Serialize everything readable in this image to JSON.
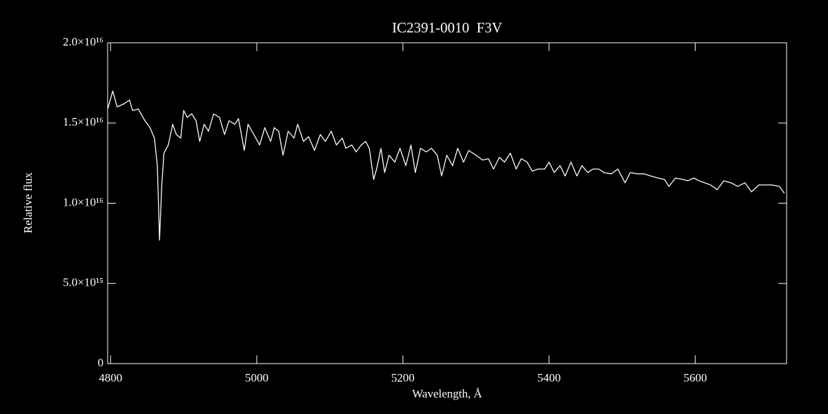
{
  "chart_data": {
    "type": "line",
    "title": "IC2391-0010  F3V",
    "xlabel": "Wavelength, Å",
    "ylabel": "Relative flux",
    "color": "#ffffff",
    "xlim": [
      4796,
      5725
    ],
    "xticks": [
      4800,
      5000,
      5200,
      5400,
      5600
    ],
    "ylim": [
      0,
      2e+16
    ],
    "yticks": [
      0,
      {
        "value": 5000000000000000.0,
        "label": "5.0×10¹⁵"
      },
      {
        "value": 1e+16,
        "label": "1.0×10¹⁶"
      },
      {
        "value": 1.5e+16,
        "label": "1.5×10¹⁶"
      },
      {
        "value": 2e+16,
        "label": "2.0×10¹⁶"
      }
    ],
    "x": [
      4796,
      4803,
      4809,
      4819,
      4826,
      4830,
      4838,
      4847,
      4854,
      4860,
      4864,
      4867,
      4870,
      4873,
      4879,
      4885,
      4890,
      4896,
      4900,
      4905,
      4911,
      4917,
      4922,
      4928,
      4934,
      4941,
      4949,
      4956,
      4962,
      4970,
      4975,
      4983,
      4988,
      4996,
      5004,
      5011,
      5019,
      5024,
      5030,
      5036,
      5043,
      5051,
      5056,
      5064,
      5071,
      5079,
      5087,
      5094,
      5102,
      5109,
      5117,
      5122,
      5130,
      5136,
      5143,
      5149,
      5154,
      5160,
      5164,
      5170,
      5175,
      5181,
      5189,
      5196,
      5204,
      5211,
      5217,
      5224,
      5232,
      5239,
      5247,
      5253,
      5260,
      5268,
      5275,
      5283,
      5290,
      5300,
      5309,
      5317,
      5324,
      5332,
      5339,
      5347,
      5355,
      5362,
      5370,
      5377,
      5385,
      5394,
      5400,
      5407,
      5415,
      5422,
      5430,
      5438,
      5445,
      5453,
      5460,
      5468,
      5475,
      5485,
      5494,
      5504,
      5511,
      5521,
      5530,
      5539,
      5549,
      5558,
      5564,
      5573,
      5583,
      5590,
      5598,
      5605,
      5613,
      5621,
      5630,
      5639,
      5649,
      5658,
      5668,
      5677,
      5687,
      5696,
      5705,
      5715,
      5722
    ],
    "values": [
      1.587e+16,
      1.699e+16,
      1.6e+16,
      1.621e+16,
      1.643e+16,
      1.578e+16,
      1.587e+16,
      1.514e+16,
      1.471e+16,
      1.406e+16,
      1.234e+16,
      7700000000000000.0,
      1.105e+16,
      1.312e+16,
      1.363e+16,
      1.492e+16,
      1.428e+16,
      1.406e+16,
      1.578e+16,
      1.535e+16,
      1.557e+16,
      1.514e+16,
      1.385e+16,
      1.492e+16,
      1.449e+16,
      1.557e+16,
      1.535e+16,
      1.428e+16,
      1.514e+16,
      1.492e+16,
      1.527e+16,
      1.329e+16,
      1.492e+16,
      1.428e+16,
      1.363e+16,
      1.471e+16,
      1.385e+16,
      1.471e+16,
      1.449e+16,
      1.299e+16,
      1.449e+16,
      1.406e+16,
      1.492e+16,
      1.385e+16,
      1.415e+16,
      1.329e+16,
      1.428e+16,
      1.385e+16,
      1.449e+16,
      1.363e+16,
      1.406e+16,
      1.342e+16,
      1.363e+16,
      1.32e+16,
      1.363e+16,
      1.385e+16,
      1.342e+16,
      1.148e+16,
      1.213e+16,
      1.342e+16,
      1.191e+16,
      1.299e+16,
      1.256e+16,
      1.342e+16,
      1.234e+16,
      1.363e+16,
      1.191e+16,
      1.342e+16,
      1.32e+16,
      1.342e+16,
      1.299e+16,
      1.17e+16,
      1.299e+16,
      1.234e+16,
      1.342e+16,
      1.256e+16,
      1.329e+16,
      1.299e+16,
      1.269e+16,
      1.277e+16,
      1.213e+16,
      1.286e+16,
      1.256e+16,
      1.312e+16,
      1.213e+16,
      1.277e+16,
      1.256e+16,
      1.2e+16,
      1.213e+16,
      1.213e+16,
      1.256e+16,
      1.191e+16,
      1.234e+16,
      1.17e+16,
      1.256e+16,
      1.17e+16,
      1.234e+16,
      1.191e+16,
      1.213e+16,
      1.213e+16,
      1.191e+16,
      1.183e+16,
      1.213e+16,
      1.127e+16,
      1.191e+16,
      1.183e+16,
      1.183e+16,
      1.17e+16,
      1.157e+16,
      1.148e+16,
      1.105e+16,
      1.157e+16,
      1.148e+16,
      1.14e+16,
      1.157e+16,
      1.14e+16,
      1.127e+16,
      1.114e+16,
      1.084e+16,
      1.14e+16,
      1.127e+16,
      1.105e+16,
      1.127e+16,
      1.071e+16,
      1.114e+16,
      1.114e+16,
      1.114e+16,
      1.105e+16,
      1.062e+16
    ]
  }
}
